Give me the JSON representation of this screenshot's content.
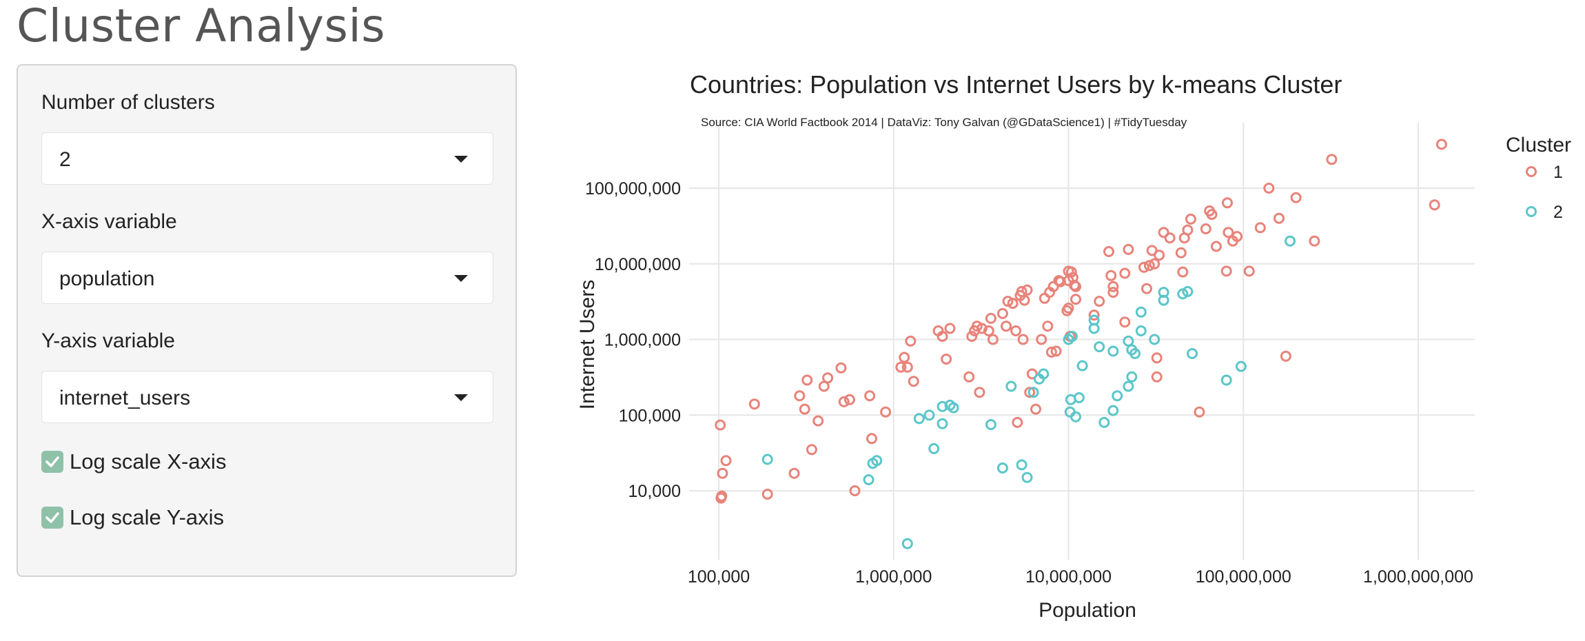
{
  "page": {
    "title": "Cluster Analysis"
  },
  "controls": {
    "clusters_label": "Number of clusters",
    "clusters_value": "2",
    "x_label": "X-axis variable",
    "x_value": "population",
    "y_label": "Y-axis variable",
    "y_value": "internet_users",
    "log_x_label": "Log scale X-axis",
    "log_x_checked": true,
    "log_y_label": "Log scale Y-axis",
    "log_y_checked": true
  },
  "chart_data": {
    "type": "scatter",
    "title": "Countries:  Population vs Internet Users by k-means Cluster",
    "subtitle": "Source: CIA World Factbook 2014  |  DataViz: Tony Galvan (@GDataScience1)  |  #TidyTuesday",
    "xlabel": "Population",
    "ylabel": "Internet Users",
    "x_scale": "log",
    "y_scale": "log",
    "xlim": [
      60000,
      1600000000
    ],
    "ylim": [
      1200,
      800000000
    ],
    "x_ticks": [
      100000,
      1000000,
      10000000,
      100000000,
      1000000000
    ],
    "x_tick_labels": [
      "100,000",
      "1,000,000",
      "10,000,000",
      "100,000,000",
      "1,000,000,000"
    ],
    "y_ticks": [
      10000,
      100000,
      1000000,
      10000000,
      100000000
    ],
    "y_tick_labels": [
      "10,000",
      "100,000",
      "1,000,000",
      "10,000,000",
      "100,000,000"
    ],
    "grid": true,
    "legend_title": "Cluster",
    "legend_position": "top-right",
    "series": [
      {
        "name": "1",
        "color": "#e8837a",
        "points": [
          [
            1360000000,
            380000000
          ],
          [
            1240000000,
            60000000
          ],
          [
            320000000,
            240000000
          ],
          [
            255000000,
            20000000
          ],
          [
            200000000,
            75000000
          ],
          [
            175000000,
            600000
          ],
          [
            160000000,
            40000000
          ],
          [
            140000000,
            100000000
          ],
          [
            125000000,
            30000000
          ],
          [
            108000000,
            8000000
          ],
          [
            92000000,
            23000000
          ],
          [
            87000000,
            20000000
          ],
          [
            82000000,
            26000000
          ],
          [
            81000000,
            64000000
          ],
          [
            80000000,
            8000000
          ],
          [
            70000000,
            17000000
          ],
          [
            66000000,
            45000000
          ],
          [
            64000000,
            50000000
          ],
          [
            61000000,
            29000000
          ],
          [
            56000000,
            110000
          ],
          [
            50000000,
            39000000
          ],
          [
            48000000,
            28000000
          ],
          [
            46000000,
            22000000
          ],
          [
            45000000,
            7800000
          ],
          [
            44000000,
            14000000
          ],
          [
            38000000,
            22000000
          ],
          [
            35000000,
            26000000
          ],
          [
            33000000,
            13000000
          ],
          [
            32000000,
            570000
          ],
          [
            32000000,
            320000
          ],
          [
            31000000,
            10000000
          ],
          [
            30000000,
            15000000
          ],
          [
            29000000,
            9500000
          ],
          [
            28000000,
            4700000
          ],
          [
            27000000,
            9000000
          ],
          [
            22000000,
            15500000
          ],
          [
            21000000,
            7500000
          ],
          [
            21000000,
            1700000
          ],
          [
            18000000,
            4200000
          ],
          [
            18000000,
            5000000
          ],
          [
            17500000,
            7000000
          ],
          [
            17000000,
            14500000
          ],
          [
            15000000,
            3200000
          ],
          [
            14000000,
            2100000
          ],
          [
            11000000,
            3400000
          ],
          [
            11000000,
            5000000
          ],
          [
            10800000,
            5200000
          ],
          [
            10600000,
            6600000
          ],
          [
            10400000,
            7800000
          ],
          [
            10200000,
            1100000
          ],
          [
            10000000,
            8000000
          ],
          [
            10000000,
            2600000
          ],
          [
            10000000,
            6000000
          ],
          [
            9800000,
            2400000
          ],
          [
            9000000,
            5800000
          ],
          [
            8800000,
            6000000
          ],
          [
            8500000,
            700000
          ],
          [
            8200000,
            5000000
          ],
          [
            8000000,
            680000
          ],
          [
            7800000,
            4200000
          ],
          [
            7600000,
            1500000
          ],
          [
            7300000,
            3500000
          ],
          [
            7000000,
            1000000
          ],
          [
            6500000,
            120000
          ],
          [
            6200000,
            350000
          ],
          [
            6000000,
            200000
          ],
          [
            5800000,
            4500000
          ],
          [
            5600000,
            3300000
          ],
          [
            5500000,
            1000000
          ],
          [
            5400000,
            4300000
          ],
          [
            5300000,
            3800000
          ],
          [
            5100000,
            80000
          ],
          [
            5000000,
            1300000
          ],
          [
            4800000,
            3000000
          ],
          [
            4500000,
            3200000
          ],
          [
            4400000,
            1500000
          ],
          [
            4200000,
            2200000
          ],
          [
            3700000,
            1000000
          ],
          [
            3600000,
            1900000
          ],
          [
            3500000,
            1300000
          ],
          [
            3200000,
            1400000
          ],
          [
            3100000,
            200000
          ],
          [
            3000000,
            1500000
          ],
          [
            2900000,
            1300000
          ],
          [
            2800000,
            1100000
          ],
          [
            2700000,
            320000
          ],
          [
            2100000,
            1400000
          ],
          [
            2000000,
            550000
          ],
          [
            1900000,
            1100000
          ],
          [
            1800000,
            1300000
          ],
          [
            1300000,
            280000
          ],
          [
            1250000,
            950000
          ],
          [
            1200000,
            430000
          ],
          [
            1150000,
            580000
          ],
          [
            1100000,
            430000
          ],
          [
            900000,
            110000
          ],
          [
            750000,
            49000
          ],
          [
            730000,
            180000
          ],
          [
            600000,
            10000
          ],
          [
            560000,
            160000
          ],
          [
            520000,
            150000
          ],
          [
            500000,
            420000
          ],
          [
            420000,
            310000
          ],
          [
            400000,
            240000
          ],
          [
            370000,
            84000
          ],
          [
            340000,
            35000
          ],
          [
            320000,
            290000
          ],
          [
            310000,
            120000
          ],
          [
            290000,
            180000
          ],
          [
            270000,
            17000
          ],
          [
            190000,
            9000
          ],
          [
            160000,
            140000
          ],
          [
            110000,
            25000
          ],
          [
            105000,
            17000
          ],
          [
            104000,
            8500
          ],
          [
            103000,
            8000
          ],
          [
            102000,
            74000
          ]
        ]
      },
      {
        "name": "2",
        "color": "#5bc6c9",
        "points": [
          [
            185000000,
            20000000
          ],
          [
            97000000,
            440000
          ],
          [
            80000000,
            290000
          ],
          [
            51000000,
            650000
          ],
          [
            48000000,
            4300000
          ],
          [
            45000000,
            4000000
          ],
          [
            35000000,
            3300000
          ],
          [
            35000000,
            4200000
          ],
          [
            31000000,
            1000000
          ],
          [
            26000000,
            2300000
          ],
          [
            26000000,
            1300000
          ],
          [
            24000000,
            650000
          ],
          [
            23000000,
            730000
          ],
          [
            23000000,
            320000
          ],
          [
            22000000,
            950000
          ],
          [
            22000000,
            240000
          ],
          [
            19000000,
            180000
          ],
          [
            18000000,
            700000
          ],
          [
            18000000,
            115000
          ],
          [
            16000000,
            80000
          ],
          [
            15000000,
            800000
          ],
          [
            14000000,
            1400000
          ],
          [
            14000000,
            1800000
          ],
          [
            12000000,
            450000
          ],
          [
            11500000,
            170000
          ],
          [
            11000000,
            95000
          ],
          [
            10500000,
            1100000
          ],
          [
            10300000,
            160000
          ],
          [
            10200000,
            110000
          ],
          [
            10000000,
            1000000
          ],
          [
            7200000,
            350000
          ],
          [
            6800000,
            300000
          ],
          [
            6300000,
            200000
          ],
          [
            5800000,
            15000
          ],
          [
            5400000,
            22000
          ],
          [
            4700000,
            240000
          ],
          [
            4200000,
            20000
          ],
          [
            3600000,
            75000
          ],
          [
            2200000,
            125000
          ],
          [
            2100000,
            135000
          ],
          [
            1900000,
            77000
          ],
          [
            1900000,
            130000
          ],
          [
            1700000,
            36000
          ],
          [
            1600000,
            100000
          ],
          [
            1400000,
            90000
          ],
          [
            1200000,
            2000
          ],
          [
            800000,
            25000
          ],
          [
            760000,
            23000
          ],
          [
            720000,
            14000
          ],
          [
            190000,
            26000
          ]
        ]
      }
    ]
  }
}
